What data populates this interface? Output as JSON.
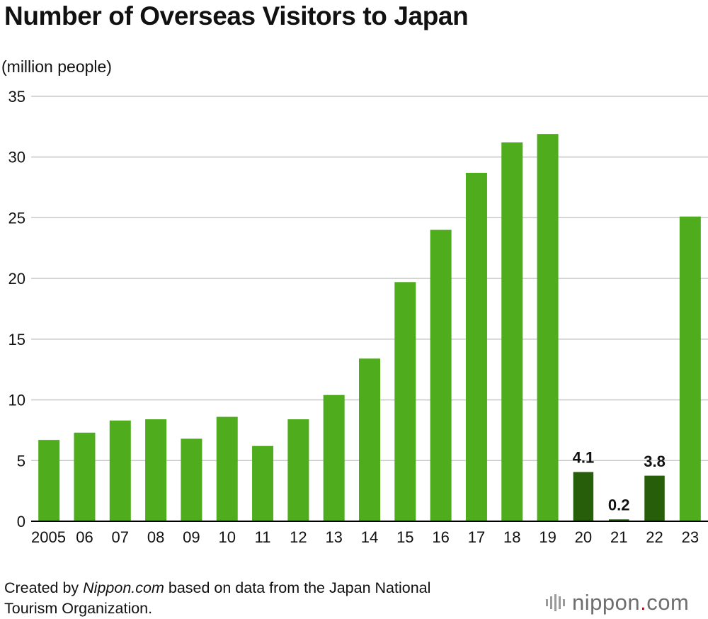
{
  "title": "Number of Overseas Visitors to Japan",
  "unit_label": "(million people)",
  "footer": {
    "prefix": "Created by ",
    "source_name": "Nippon.com",
    "suffix": " based on data from the Japan National",
    "line2": "Tourism Organization."
  },
  "brand": {
    "name": "nippon",
    "dot": ".",
    "tld": "com"
  },
  "colors": {
    "bar": "#4fac1c",
    "bar_highlight": "#265e09",
    "grid": "#c9c9c9",
    "axis": "#000000"
  },
  "chart_data": {
    "type": "bar",
    "title": "Number of Overseas Visitors to Japan",
    "ylabel": "(million people)",
    "xlabel": "",
    "ylim": [
      0,
      35
    ],
    "yticks": [
      0,
      5,
      10,
      15,
      20,
      25,
      30,
      35
    ],
    "grid": true,
    "categories": [
      "2005",
      "06",
      "07",
      "08",
      "09",
      "10",
      "11",
      "12",
      "13",
      "14",
      "15",
      "16",
      "17",
      "18",
      "19",
      "20",
      "21",
      "22",
      "23"
    ],
    "values": [
      6.7,
      7.3,
      8.3,
      8.4,
      6.8,
      8.6,
      6.2,
      8.4,
      10.4,
      13.4,
      19.7,
      24.0,
      28.7,
      31.2,
      31.9,
      4.1,
      0.2,
      3.8,
      25.1
    ],
    "highlight": [
      false,
      false,
      false,
      false,
      false,
      false,
      false,
      false,
      false,
      false,
      false,
      false,
      false,
      false,
      false,
      true,
      true,
      true,
      false
    ],
    "data_labels": [
      "",
      "",
      "",
      "",
      "",
      "",
      "",
      "",
      "",
      "",
      "",
      "",
      "",
      "",
      "",
      "4.1",
      "0.2",
      "3.8",
      ""
    ]
  }
}
